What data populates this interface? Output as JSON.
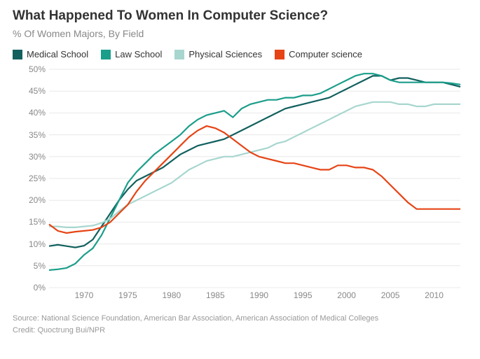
{
  "title": "What Happened To Women In Computer Science?",
  "subtitle": "% Of Women Majors, By Field",
  "source": "Source: National Science Foundation, American Bar Association, American Association of Medical Colleges",
  "credit": "Credit: Quoctrung Bui/NPR",
  "chart": {
    "type": "line",
    "background_color": "#ffffff",
    "grid_color": "#e8e8e8",
    "axis_label_color": "#888888",
    "axis_fontsize": 12,
    "line_width": 2.2,
    "x": {
      "min": 1966,
      "max": 2013,
      "ticks": [
        1970,
        1975,
        1980,
        1985,
        1990,
        1995,
        2000,
        2005,
        2010
      ]
    },
    "y": {
      "min": 0,
      "max": 50,
      "ticks": [
        0,
        5,
        10,
        15,
        20,
        25,
        30,
        35,
        40,
        45,
        50
      ],
      "suffix": "%"
    },
    "series": [
      {
        "key": "medical_school",
        "label": "Medical School",
        "color": "#11605e",
        "points": [
          [
            1966,
            9.5
          ],
          [
            1967,
            9.8
          ],
          [
            1968,
            9.5
          ],
          [
            1969,
            9.2
          ],
          [
            1970,
            9.6
          ],
          [
            1971,
            11.0
          ],
          [
            1972,
            14.0
          ],
          [
            1973,
            17.0
          ],
          [
            1974,
            20.0
          ],
          [
            1975,
            22.5
          ],
          [
            1976,
            24.5
          ],
          [
            1977,
            25.5
          ],
          [
            1978,
            26.5
          ],
          [
            1979,
            27.5
          ],
          [
            1980,
            29.0
          ],
          [
            1981,
            30.5
          ],
          [
            1982,
            31.5
          ],
          [
            1983,
            32.5
          ],
          [
            1984,
            33.0
          ],
          [
            1985,
            33.5
          ],
          [
            1986,
            34.0
          ],
          [
            1987,
            35.0
          ],
          [
            1988,
            36.0
          ],
          [
            1989,
            37.0
          ],
          [
            1990,
            38.0
          ],
          [
            1991,
            39.0
          ],
          [
            1992,
            40.0
          ],
          [
            1993,
            41.0
          ],
          [
            1994,
            41.5
          ],
          [
            1995,
            42.0
          ],
          [
            1996,
            42.5
          ],
          [
            1997,
            43.0
          ],
          [
            1998,
            43.5
          ],
          [
            1999,
            44.5
          ],
          [
            2000,
            45.5
          ],
          [
            2001,
            46.5
          ],
          [
            2002,
            47.5
          ],
          [
            2003,
            48.5
          ],
          [
            2004,
            48.5
          ],
          [
            2005,
            47.5
          ],
          [
            2006,
            48.0
          ],
          [
            2007,
            48.0
          ],
          [
            2008,
            47.5
          ],
          [
            2009,
            47.0
          ],
          [
            2010,
            47.0
          ],
          [
            2011,
            47.0
          ],
          [
            2012,
            46.5
          ],
          [
            2013,
            46.0
          ]
        ]
      },
      {
        "key": "law_school",
        "label": "Law School",
        "color": "#1b9e8a",
        "points": [
          [
            1966,
            4.0
          ],
          [
            1967,
            4.2
          ],
          [
            1968,
            4.5
          ],
          [
            1969,
            5.5
          ],
          [
            1970,
            7.5
          ],
          [
            1971,
            9.0
          ],
          [
            1972,
            12.0
          ],
          [
            1973,
            16.0
          ],
          [
            1974,
            20.0
          ],
          [
            1975,
            24.0
          ],
          [
            1976,
            26.5
          ],
          [
            1977,
            28.5
          ],
          [
            1978,
            30.5
          ],
          [
            1979,
            32.0
          ],
          [
            1980,
            33.5
          ],
          [
            1981,
            35.0
          ],
          [
            1982,
            37.0
          ],
          [
            1983,
            38.5
          ],
          [
            1984,
            39.5
          ],
          [
            1985,
            40.0
          ],
          [
            1986,
            40.5
          ],
          [
            1987,
            39.0
          ],
          [
            1988,
            41.0
          ],
          [
            1989,
            42.0
          ],
          [
            1990,
            42.5
          ],
          [
            1991,
            43.0
          ],
          [
            1992,
            43.0
          ],
          [
            1993,
            43.5
          ],
          [
            1994,
            43.5
          ],
          [
            1995,
            44.0
          ],
          [
            1996,
            44.0
          ],
          [
            1997,
            44.5
          ],
          [
            1998,
            45.5
          ],
          [
            1999,
            46.5
          ],
          [
            2000,
            47.5
          ],
          [
            2001,
            48.5
          ],
          [
            2002,
            49.0
          ],
          [
            2003,
            49.0
          ],
          [
            2004,
            48.5
          ],
          [
            2005,
            47.5
          ],
          [
            2006,
            47.0
          ],
          [
            2007,
            47.0
          ],
          [
            2008,
            47.0
          ],
          [
            2009,
            47.0
          ],
          [
            2010,
            47.0
          ],
          [
            2011,
            47.0
          ],
          [
            2012,
            46.8
          ],
          [
            2013,
            46.5
          ]
        ]
      },
      {
        "key": "physical_sciences",
        "label": "Physical Sciences",
        "color": "#a7d6cf",
        "points": [
          [
            1966,
            14.0
          ],
          [
            1967,
            14.0
          ],
          [
            1968,
            13.8
          ],
          [
            1969,
            13.8
          ],
          [
            1970,
            14.0
          ],
          [
            1971,
            14.2
          ],
          [
            1972,
            14.8
          ],
          [
            1973,
            15.8
          ],
          [
            1974,
            17.5
          ],
          [
            1975,
            19.0
          ],
          [
            1976,
            20.0
          ],
          [
            1977,
            21.0
          ],
          [
            1978,
            22.0
          ],
          [
            1979,
            23.0
          ],
          [
            1980,
            24.0
          ],
          [
            1981,
            25.5
          ],
          [
            1982,
            27.0
          ],
          [
            1983,
            28.0
          ],
          [
            1984,
            29.0
          ],
          [
            1985,
            29.5
          ],
          [
            1986,
            30.0
          ],
          [
            1987,
            30.0
          ],
          [
            1988,
            30.5
          ],
          [
            1989,
            31.0
          ],
          [
            1990,
            31.5
          ],
          [
            1991,
            32.0
          ],
          [
            1992,
            33.0
          ],
          [
            1993,
            33.5
          ],
          [
            1994,
            34.5
          ],
          [
            1995,
            35.5
          ],
          [
            1996,
            36.5
          ],
          [
            1997,
            37.5
          ],
          [
            1998,
            38.5
          ],
          [
            1999,
            39.5
          ],
          [
            2000,
            40.5
          ],
          [
            2001,
            41.5
          ],
          [
            2002,
            42.0
          ],
          [
            2003,
            42.5
          ],
          [
            2004,
            42.5
          ],
          [
            2005,
            42.5
          ],
          [
            2006,
            42.0
          ],
          [
            2007,
            42.0
          ],
          [
            2008,
            41.5
          ],
          [
            2009,
            41.5
          ],
          [
            2010,
            42.0
          ],
          [
            2011,
            42.0
          ],
          [
            2012,
            42.0
          ],
          [
            2013,
            42.0
          ]
        ]
      },
      {
        "key": "computer_science",
        "label": "Computer science",
        "color": "#e64415",
        "points": [
          [
            1966,
            14.5
          ],
          [
            1967,
            13.0
          ],
          [
            1968,
            12.5
          ],
          [
            1969,
            12.8
          ],
          [
            1970,
            13.0
          ],
          [
            1971,
            13.2
          ],
          [
            1972,
            13.8
          ],
          [
            1973,
            15.0
          ],
          [
            1974,
            17.0
          ],
          [
            1975,
            19.0
          ],
          [
            1976,
            22.0
          ],
          [
            1977,
            24.5
          ],
          [
            1978,
            26.5
          ],
          [
            1979,
            28.5
          ],
          [
            1980,
            30.5
          ],
          [
            1981,
            32.5
          ],
          [
            1982,
            34.5
          ],
          [
            1983,
            36.0
          ],
          [
            1984,
            37.0
          ],
          [
            1985,
            36.5
          ],
          [
            1986,
            35.5
          ],
          [
            1987,
            34.0
          ],
          [
            1988,
            32.5
          ],
          [
            1989,
            31.0
          ],
          [
            1990,
            30.0
          ],
          [
            1991,
            29.5
          ],
          [
            1992,
            29.0
          ],
          [
            1993,
            28.5
          ],
          [
            1994,
            28.5
          ],
          [
            1995,
            28.0
          ],
          [
            1996,
            27.5
          ],
          [
            1997,
            27.0
          ],
          [
            1998,
            27.0
          ],
          [
            1999,
            28.0
          ],
          [
            2000,
            28.0
          ],
          [
            2001,
            27.5
          ],
          [
            2002,
            27.5
          ],
          [
            2003,
            27.0
          ],
          [
            2004,
            25.5
          ],
          [
            2005,
            23.5
          ],
          [
            2006,
            21.5
          ],
          [
            2007,
            19.5
          ],
          [
            2008,
            18.0
          ],
          [
            2009,
            18.0
          ],
          [
            2010,
            18.0
          ],
          [
            2011,
            18.0
          ],
          [
            2012,
            18.0
          ],
          [
            2013,
            18.0
          ]
        ]
      }
    ]
  }
}
